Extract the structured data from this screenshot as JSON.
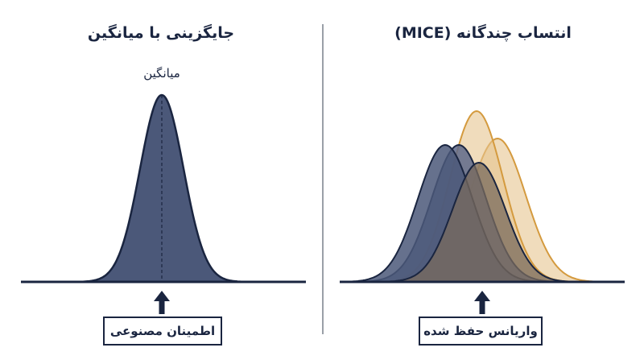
{
  "left_panel": {
    "title": "جایگزینی با میانگین",
    "mean_label": "میانگین",
    "box_label": "اطمینان مصنوعی"
  },
  "right_panel": {
    "title": "انتساب چندگانه (MICE)",
    "box_label": "واریانس حفظ شده"
  },
  "colors": {
    "navy": "#1a2540",
    "navy_fill": "#4b5879",
    "gold": "#d49a3e",
    "gold_fill": "#e6c48f",
    "divider": "#9aa0a8"
  }
}
